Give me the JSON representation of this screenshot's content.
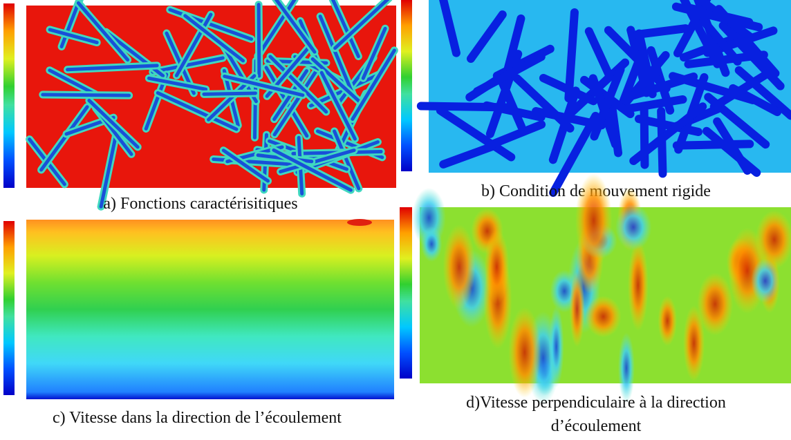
{
  "panels": [
    {
      "caption": "a) Fonctions caractérisitiques"
    },
    {
      "caption": "b) Condition de mouvement rigide"
    },
    {
      "caption": "c) Vitesse dans la direction de l’écoulement"
    },
    {
      "caption_lines": [
        "d)Vitesse perpendiculaire à la direction",
        "d’écoulement"
      ]
    }
  ]
}
